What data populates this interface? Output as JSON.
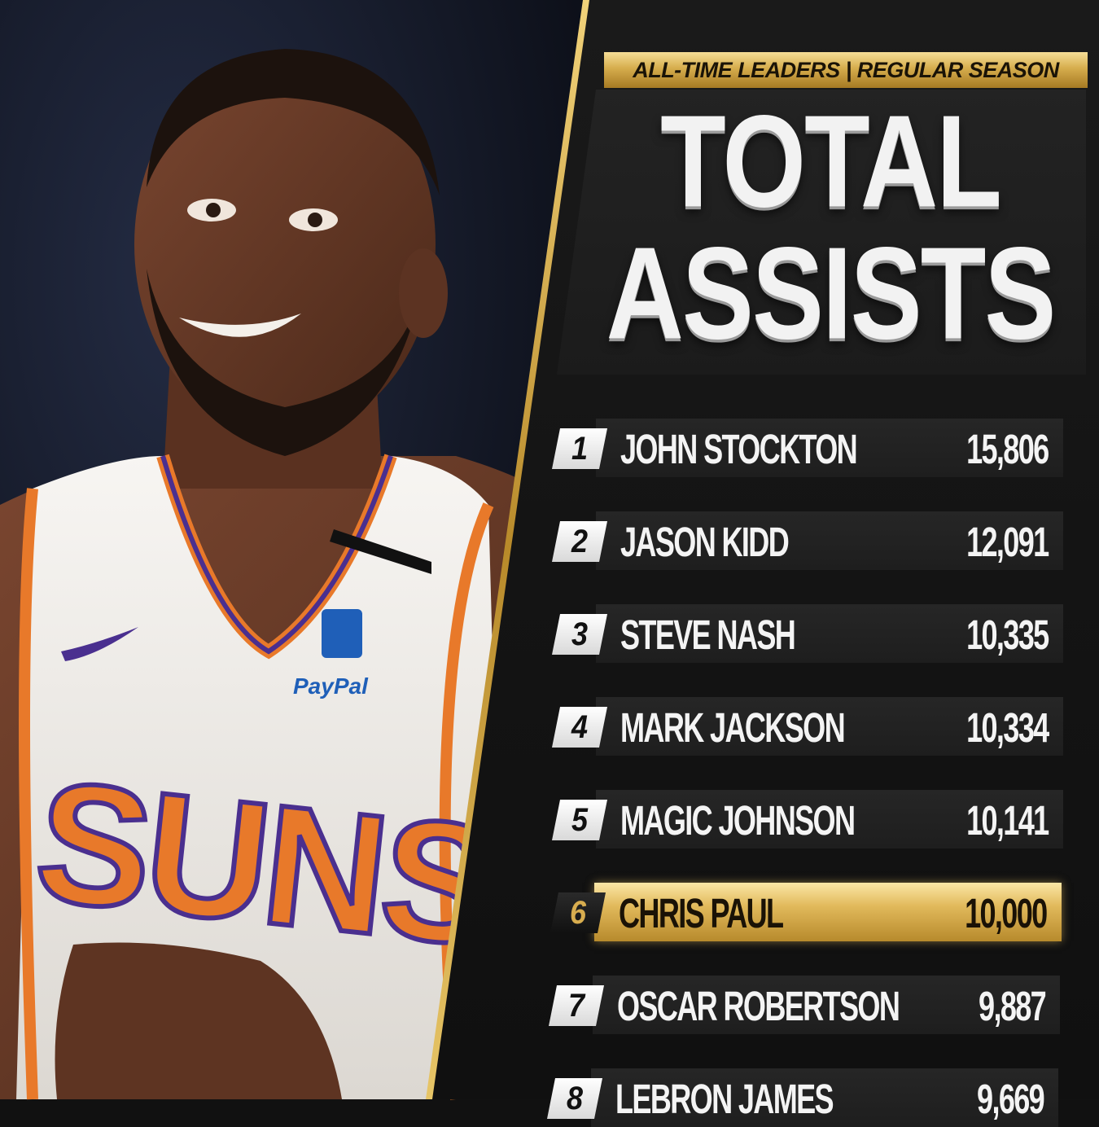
{
  "header": {
    "banner": "ALL-TIME LEADERS | REGULAR SEASON",
    "title_line1": "TOTAL",
    "title_line2": "ASSISTS"
  },
  "photo": {
    "jersey_text": "SUNS",
    "sponsor_text": "PayPal"
  },
  "leaders": [
    {
      "rank": "1",
      "name": "JOHN STOCKTON",
      "value": "15,806"
    },
    {
      "rank": "2",
      "name": "JASON KIDD",
      "value": "12,091"
    },
    {
      "rank": "3",
      "name": "STEVE NASH",
      "value": "10,335"
    },
    {
      "rank": "4",
      "name": "MARK JACKSON",
      "value": "10,334"
    },
    {
      "rank": "5",
      "name": "MAGIC JOHNSON",
      "value": "10,141"
    },
    {
      "rank": "6",
      "name": "CHRIS PAUL",
      "value": "10,000",
      "highlighted": true
    },
    {
      "rank": "7",
      "name": "OSCAR ROBERTSON",
      "value": "9,887"
    },
    {
      "rank": "8",
      "name": "LEBRON JAMES",
      "value": "9,669"
    }
  ],
  "colors": {
    "gold": "#d6ad4d",
    "panel": "#1a1a1a",
    "jersey_orange": "#e8792a",
    "jersey_purple": "#4a2f8f"
  }
}
